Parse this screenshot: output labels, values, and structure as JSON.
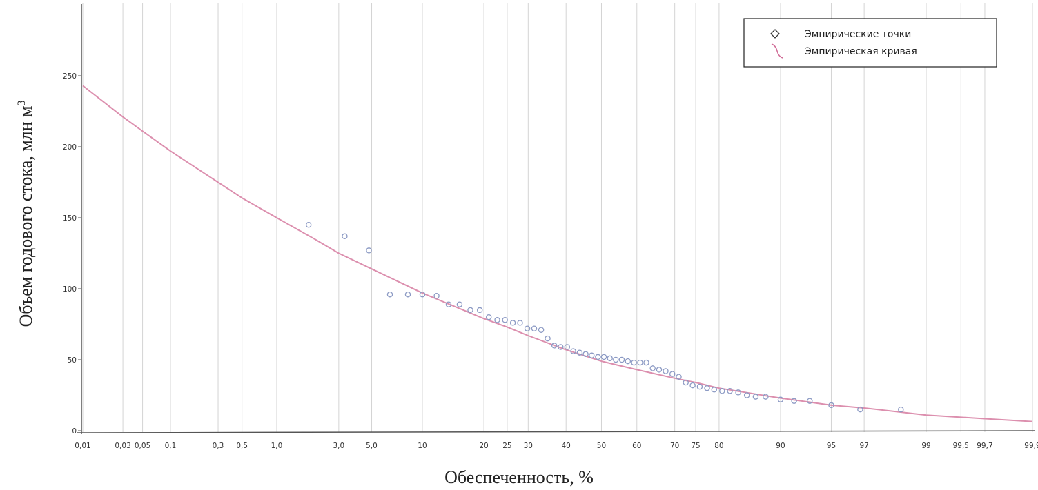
{
  "chart_data": {
    "type": "scatter",
    "xscale": "probability",
    "xlabel": "Обеспеченность, %",
    "ylabel": "Объем годового стока, млн м",
    "ylabel_superscript": "3",
    "xlim": [
      0.01,
      99.9
    ],
    "ylim": [
      0,
      250
    ],
    "grid": "vertical",
    "legend_position": "top-right",
    "x_ticks": [
      {
        "value": 0.01,
        "label": "0,01"
      },
      {
        "value": 0.03,
        "label": "0,03"
      },
      {
        "value": 0.05,
        "label": "0,05"
      },
      {
        "value": 0.1,
        "label": "0,1"
      },
      {
        "value": 0.3,
        "label": "0,3"
      },
      {
        "value": 0.5,
        "label": "0,5"
      },
      {
        "value": 1.0,
        "label": "1,0"
      },
      {
        "value": 3.0,
        "label": "3,0"
      },
      {
        "value": 5.0,
        "label": "5,0"
      },
      {
        "value": 10,
        "label": "10"
      },
      {
        "value": 20,
        "label": "20"
      },
      {
        "value": 25,
        "label": "25"
      },
      {
        "value": 30,
        "label": "30"
      },
      {
        "value": 40,
        "label": "40"
      },
      {
        "value": 50,
        "label": "50"
      },
      {
        "value": 60,
        "label": "60"
      },
      {
        "value": 70,
        "label": "70"
      },
      {
        "value": 75,
        "label": "75"
      },
      {
        "value": 80,
        "label": "80"
      },
      {
        "value": 90,
        "label": "90"
      },
      {
        "value": 95,
        "label": "95"
      },
      {
        "value": 97,
        "label": "97"
      },
      {
        "value": 99,
        "label": "99"
      },
      {
        "value": 99.5,
        "label": "99,5"
      },
      {
        "value": 99.7,
        "label": "99,7"
      },
      {
        "value": 99.9,
        "label": "99,9"
      }
    ],
    "y_ticks": [
      {
        "value": 0,
        "label": "0"
      },
      {
        "value": 50,
        "label": "50"
      },
      {
        "value": 100,
        "label": "100"
      },
      {
        "value": 150,
        "label": "150"
      },
      {
        "value": 200,
        "label": "200"
      },
      {
        "value": 250,
        "label": "250"
      }
    ],
    "series": [
      {
        "name": "Эмпирические точки",
        "kind": "points",
        "color": "#8c9ac4",
        "points": [
          [
            1.8,
            145
          ],
          [
            3.3,
            137
          ],
          [
            4.8,
            127
          ],
          [
            6.5,
            96
          ],
          [
            8.3,
            96
          ],
          [
            10.0,
            96
          ],
          [
            11.9,
            95
          ],
          [
            13.7,
            89
          ],
          [
            15.5,
            89
          ],
          [
            17.4,
            85
          ],
          [
            19.2,
            85
          ],
          [
            21.0,
            80
          ],
          [
            22.8,
            78
          ],
          [
            24.5,
            78
          ],
          [
            26.3,
            76
          ],
          [
            28.0,
            76
          ],
          [
            29.8,
            72
          ],
          [
            31.5,
            72
          ],
          [
            33.3,
            71
          ],
          [
            35.0,
            65
          ],
          [
            36.8,
            60
          ],
          [
            38.5,
            59
          ],
          [
            40.3,
            59
          ],
          [
            42.0,
            56
          ],
          [
            43.8,
            55
          ],
          [
            45.5,
            54
          ],
          [
            47.2,
            53
          ],
          [
            49.0,
            52
          ],
          [
            50.7,
            52
          ],
          [
            52.4,
            51
          ],
          [
            54.1,
            50
          ],
          [
            55.8,
            50
          ],
          [
            57.5,
            49
          ],
          [
            59.2,
            48
          ],
          [
            60.9,
            48
          ],
          [
            62.6,
            48
          ],
          [
            64.3,
            44
          ],
          [
            66.0,
            43
          ],
          [
            67.7,
            42
          ],
          [
            69.4,
            40
          ],
          [
            71.0,
            38
          ],
          [
            72.7,
            34
          ],
          [
            74.3,
            32
          ],
          [
            75.9,
            31
          ],
          [
            77.5,
            30
          ],
          [
            79.0,
            29
          ],
          [
            80.6,
            28
          ],
          [
            82.1,
            28
          ],
          [
            83.6,
            27
          ],
          [
            85.1,
            25
          ],
          [
            86.5,
            24
          ],
          [
            88.0,
            24
          ],
          [
            90.0,
            22
          ],
          [
            91.6,
            21
          ],
          [
            93.2,
            21
          ],
          [
            95.0,
            18
          ],
          [
            96.8,
            15
          ],
          [
            98.4,
            15
          ]
        ]
      },
      {
        "name": "Эмпирическая кривая",
        "kind": "curve",
        "color": "#dc8fae",
        "points": [
          [
            0.01,
            243
          ],
          [
            0.03,
            221
          ],
          [
            0.05,
            211
          ],
          [
            0.1,
            197
          ],
          [
            0.3,
            175
          ],
          [
            0.5,
            164
          ],
          [
            1.0,
            150
          ],
          [
            2.0,
            135
          ],
          [
            3.0,
            125
          ],
          [
            5.0,
            114
          ],
          [
            10,
            97
          ],
          [
            20,
            79
          ],
          [
            25,
            73
          ],
          [
            30,
            67
          ],
          [
            40,
            57
          ],
          [
            50,
            49
          ],
          [
            60,
            43
          ],
          [
            70,
            37
          ],
          [
            75,
            34
          ],
          [
            80,
            30
          ],
          [
            90,
            23
          ],
          [
            95,
            18
          ],
          [
            97,
            16
          ],
          [
            99,
            11
          ],
          [
            99.5,
            9.5
          ],
          [
            99.7,
            8.5
          ],
          [
            99.9,
            6.5
          ]
        ]
      }
    ],
    "annotations": []
  },
  "legend": {
    "points_label": "Эмпирические точки",
    "curve_label": "Эмпирическая кривая"
  }
}
